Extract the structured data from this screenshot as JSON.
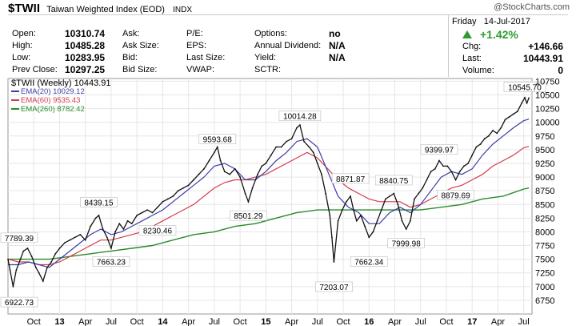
{
  "header": {
    "symbol": "$TWII",
    "name": "Taiwan Weighted Index (EOD)",
    "exchange": "INDX",
    "watermark": "@StockCharts.com",
    "date_day": "Friday",
    "date": "14-Jul-2017",
    "change_pct": "+1.42%",
    "change_color": "#2e9b2e"
  },
  "quotes": {
    "open_label": "Open:",
    "open": "10310.74",
    "high_label": "High:",
    "high": "10485.28",
    "low_label": "Low:",
    "low": "10283.95",
    "prev_label": "Prev Close:",
    "prev": "10297.25",
    "ask_label": "Ask:",
    "ask": "",
    "ask_size_label": "Ask Size:",
    "ask_size": "",
    "bid_label": "Bid:",
    "bid": "",
    "bid_size_label": "Bid Size:",
    "bid_size": "",
    "pe_label": "P/E:",
    "pe": "",
    "eps_label": "EPS:",
    "eps": "",
    "last_size_label": "Last Size:",
    "last_size": "",
    "vwap_label": "VWAP:",
    "vwap": "",
    "options_label": "Options:",
    "options": "no",
    "div_label": "Annual Dividend:",
    "div": "N/A",
    "yield_label": "Yield:",
    "yield": "N/A",
    "sctr_label": "SCTR:",
    "sctr": "",
    "chg_label": "Chg:",
    "chg": "+146.66",
    "last_label": "Last:",
    "last": "10443.91",
    "vol_label": "Volume:",
    "vol": "0"
  },
  "chart_data": {
    "type": "line",
    "price_label": "$TWII (Weekly) 10443.91",
    "legend": [
      {
        "name": "EMA(20) 10029.12",
        "color": "#3b3ba8"
      },
      {
        "name": "EMA(60) 9535.43",
        "color": "#d23c4b"
      },
      {
        "name": "EMA(260) 8782.42",
        "color": "#2a8a2a"
      }
    ],
    "ylim": [
      6500,
      10800
    ],
    "yticks": [
      6750,
      7000,
      7250,
      7500,
      7750,
      8000,
      8250,
      8500,
      8750,
      9000,
      9250,
      9500,
      9750,
      10000,
      10250,
      10500,
      10750
    ],
    "xticks": [
      "Oct",
      "13",
      "Apr",
      "Jul",
      "Oct",
      "14",
      "Apr",
      "Jul",
      "Oct",
      "15",
      "Apr",
      "Jul",
      "Oct",
      "16",
      "Apr",
      "Jul",
      "Oct",
      "17",
      "Apr",
      "Jul"
    ],
    "xtick_pos": [
      2012.75,
      2013.0,
      2013.25,
      2013.5,
      2013.75,
      2014.0,
      2014.25,
      2014.5,
      2014.75,
      2015.0,
      2015.25,
      2015.5,
      2015.75,
      2016.0,
      2016.25,
      2016.5,
      2016.75,
      2017.0,
      2017.25,
      2017.5
    ],
    "xlim": [
      2012.5,
      2017.58
    ],
    "price": [
      [
        2012.5,
        7500
      ],
      [
        2012.52,
        7300
      ],
      [
        2012.55,
        7000
      ],
      [
        2012.58,
        7300
      ],
      [
        2012.62,
        7500
      ],
      [
        2012.65,
        7650
      ],
      [
        2012.69,
        7700
      ],
      [
        2012.73,
        7550
      ],
      [
        2012.77,
        7350
      ],
      [
        2012.8,
        7250
      ],
      [
        2012.84,
        7100
      ],
      [
        2012.88,
        7350
      ],
      [
        2012.92,
        7450
      ],
      [
        2012.96,
        7600
      ],
      [
        2013.0,
        7700
      ],
      [
        2013.05,
        7800
      ],
      [
        2013.1,
        7850
      ],
      [
        2013.15,
        7900
      ],
      [
        2013.2,
        7950
      ],
      [
        2013.25,
        7850
      ],
      [
        2013.3,
        8100
      ],
      [
        2013.35,
        8250
      ],
      [
        2013.38,
        8300
      ],
      [
        2013.42,
        8050
      ],
      [
        2013.46,
        7900
      ],
      [
        2013.5,
        7700
      ],
      [
        2013.54,
        8000
      ],
      [
        2013.58,
        8150
      ],
      [
        2013.62,
        8050
      ],
      [
        2013.66,
        8200
      ],
      [
        2013.7,
        8150
      ],
      [
        2013.75,
        8300
      ],
      [
        2013.8,
        8350
      ],
      [
        2013.85,
        8400
      ],
      [
        2013.9,
        8350
      ],
      [
        2013.95,
        8450
      ],
      [
        2014.0,
        8550
      ],
      [
        2014.05,
        8600
      ],
      [
        2014.1,
        8650
      ],
      [
        2014.15,
        8750
      ],
      [
        2014.2,
        8800
      ],
      [
        2014.25,
        8850
      ],
      [
        2014.3,
        8950
      ],
      [
        2014.35,
        9050
      ],
      [
        2014.4,
        9150
      ],
      [
        2014.45,
        9300
      ],
      [
        2014.5,
        9450
      ],
      [
        2014.53,
        9550
      ],
      [
        2014.56,
        9300
      ],
      [
        2014.6,
        9100
      ],
      [
        2014.65,
        9050
      ],
      [
        2014.7,
        9150
      ],
      [
        2014.75,
        9000
      ],
      [
        2014.8,
        8700
      ],
      [
        2014.83,
        8550
      ],
      [
        2014.87,
        8800
      ],
      [
        2014.92,
        9050
      ],
      [
        2014.96,
        9200
      ],
      [
        2015.0,
        9250
      ],
      [
        2015.05,
        9400
      ],
      [
        2015.1,
        9550
      ],
      [
        2015.15,
        9550
      ],
      [
        2015.2,
        9650
      ],
      [
        2015.25,
        9700
      ],
      [
        2015.3,
        9900
      ],
      [
        2015.33,
        9950
      ],
      [
        2015.37,
        9650
      ],
      [
        2015.42,
        9550
      ],
      [
        2015.46,
        9450
      ],
      [
        2015.5,
        9250
      ],
      [
        2015.54,
        9050
      ],
      [
        2015.58,
        8700
      ],
      [
        2015.62,
        8300
      ],
      [
        2015.64,
        7900
      ],
      [
        2015.66,
        7450
      ],
      [
        2015.7,
        8200
      ],
      [
        2015.74,
        8400
      ],
      [
        2015.78,
        8550
      ],
      [
        2015.82,
        8650
      ],
      [
        2015.85,
        8400
      ],
      [
        2015.88,
        8200
      ],
      [
        2015.92,
        8300
      ],
      [
        2015.96,
        8100
      ],
      [
        2016.0,
        7900
      ],
      [
        2016.04,
        8000
      ],
      [
        2016.08,
        8200
      ],
      [
        2016.12,
        8400
      ],
      [
        2016.16,
        8600
      ],
      [
        2016.2,
        8650
      ],
      [
        2016.24,
        8700
      ],
      [
        2016.28,
        8500
      ],
      [
        2016.32,
        8200
      ],
      [
        2016.36,
        8050
      ],
      [
        2016.4,
        8200
      ],
      [
        2016.44,
        8600
      ],
      [
        2016.48,
        8700
      ],
      [
        2016.52,
        8800
      ],
      [
        2016.56,
        8950
      ],
      [
        2016.6,
        9100
      ],
      [
        2016.64,
        9150
      ],
      [
        2016.68,
        9300
      ],
      [
        2016.72,
        9200
      ],
      [
        2016.76,
        9200
      ],
      [
        2016.8,
        9100
      ],
      [
        2016.84,
        8950
      ],
      [
        2016.88,
        9100
      ],
      [
        2016.92,
        9200
      ],
      [
        2016.96,
        9250
      ],
      [
        2017.0,
        9400
      ],
      [
        2017.04,
        9550
      ],
      [
        2017.08,
        9600
      ],
      [
        2017.12,
        9700
      ],
      [
        2017.16,
        9750
      ],
      [
        2017.2,
        9850
      ],
      [
        2017.24,
        9800
      ],
      [
        2017.28,
        9900
      ],
      [
        2017.32,
        10050
      ],
      [
        2017.36,
        10100
      ],
      [
        2017.4,
        10150
      ],
      [
        2017.44,
        10200
      ],
      [
        2017.48,
        10350
      ],
      [
        2017.51,
        10450
      ],
      [
        2017.53,
        10350
      ],
      [
        2017.55,
        10444
      ]
    ],
    "ema20": [
      [
        2012.5,
        7400
      ],
      [
        2012.6,
        7400
      ],
      [
        2012.7,
        7450
      ],
      [
        2012.8,
        7400
      ],
      [
        2012.9,
        7350
      ],
      [
        2013.0,
        7500
      ],
      [
        2013.1,
        7650
      ],
      [
        2013.2,
        7800
      ],
      [
        2013.3,
        7950
      ],
      [
        2013.4,
        8050
      ],
      [
        2013.5,
        7950
      ],
      [
        2013.6,
        8000
      ],
      [
        2013.7,
        8100
      ],
      [
        2013.8,
        8200
      ],
      [
        2013.9,
        8300
      ],
      [
        2014.0,
        8400
      ],
      [
        2014.1,
        8550
      ],
      [
        2014.2,
        8700
      ],
      [
        2014.3,
        8850
      ],
      [
        2014.4,
        9000
      ],
      [
        2014.5,
        9200
      ],
      [
        2014.6,
        9250
      ],
      [
        2014.7,
        9150
      ],
      [
        2014.8,
        8950
      ],
      [
        2014.9,
        8950
      ],
      [
        2015.0,
        9100
      ],
      [
        2015.1,
        9300
      ],
      [
        2015.2,
        9450
      ],
      [
        2015.3,
        9650
      ],
      [
        2015.4,
        9700
      ],
      [
        2015.5,
        9550
      ],
      [
        2015.6,
        9100
      ],
      [
        2015.7,
        8650
      ],
      [
        2015.8,
        8450
      ],
      [
        2015.9,
        8350
      ],
      [
        2016.0,
        8150
      ],
      [
        2016.1,
        8150
      ],
      [
        2016.2,
        8350
      ],
      [
        2016.3,
        8450
      ],
      [
        2016.4,
        8350
      ],
      [
        2016.5,
        8500
      ],
      [
        2016.6,
        8750
      ],
      [
        2016.7,
        9000
      ],
      [
        2016.8,
        9100
      ],
      [
        2016.9,
        9050
      ],
      [
        2017.0,
        9150
      ],
      [
        2017.1,
        9400
      ],
      [
        2017.2,
        9600
      ],
      [
        2017.3,
        9750
      ],
      [
        2017.4,
        9900
      ],
      [
        2017.5,
        10029
      ],
      [
        2017.55,
        10060
      ]
    ],
    "ema60": [
      [
        2012.5,
        7500
      ],
      [
        2012.6,
        7450
      ],
      [
        2012.7,
        7450
      ],
      [
        2012.8,
        7400
      ],
      [
        2012.9,
        7400
      ],
      [
        2013.0,
        7450
      ],
      [
        2013.1,
        7550
      ],
      [
        2013.2,
        7650
      ],
      [
        2013.3,
        7750
      ],
      [
        2013.4,
        7850
      ],
      [
        2013.5,
        7850
      ],
      [
        2013.6,
        7900
      ],
      [
        2013.7,
        7950
      ],
      [
        2013.8,
        8000
      ],
      [
        2013.9,
        8100
      ],
      [
        2014.0,
        8200
      ],
      [
        2014.1,
        8300
      ],
      [
        2014.2,
        8400
      ],
      [
        2014.3,
        8500
      ],
      [
        2014.4,
        8650
      ],
      [
        2014.5,
        8800
      ],
      [
        2014.6,
        8900
      ],
      [
        2014.7,
        8950
      ],
      [
        2014.8,
        8950
      ],
      [
        2014.9,
        9000
      ],
      [
        2015.0,
        9050
      ],
      [
        2015.1,
        9150
      ],
      [
        2015.2,
        9250
      ],
      [
        2015.3,
        9350
      ],
      [
        2015.4,
        9450
      ],
      [
        2015.5,
        9350
      ],
      [
        2015.6,
        9150
      ],
      [
        2015.7,
        8950
      ],
      [
        2015.8,
        8800
      ],
      [
        2015.9,
        8700
      ],
      [
        2016.0,
        8600
      ],
      [
        2016.1,
        8550
      ],
      [
        2016.2,
        8550
      ],
      [
        2016.3,
        8550
      ],
      [
        2016.4,
        8450
      ],
      [
        2016.5,
        8500
      ],
      [
        2016.6,
        8600
      ],
      [
        2016.7,
        8700
      ],
      [
        2016.8,
        8800
      ],
      [
        2016.9,
        8850
      ],
      [
        2017.0,
        8950
      ],
      [
        2017.1,
        9050
      ],
      [
        2017.2,
        9200
      ],
      [
        2017.3,
        9300
      ],
      [
        2017.4,
        9400
      ],
      [
        2017.5,
        9535
      ],
      [
        2017.55,
        9560
      ]
    ],
    "ema260": [
      [
        2012.5,
        7500
      ],
      [
        2012.7,
        7500
      ],
      [
        2012.9,
        7500
      ],
      [
        2013.1,
        7550
      ],
      [
        2013.3,
        7600
      ],
      [
        2013.5,
        7650
      ],
      [
        2013.7,
        7700
      ],
      [
        2013.9,
        7750
      ],
      [
        2014.1,
        7850
      ],
      [
        2014.3,
        7950
      ],
      [
        2014.5,
        8000
      ],
      [
        2014.7,
        8100
      ],
      [
        2014.9,
        8150
      ],
      [
        2015.1,
        8250
      ],
      [
        2015.3,
        8350
      ],
      [
        2015.5,
        8400
      ],
      [
        2015.7,
        8400
      ],
      [
        2015.9,
        8400
      ],
      [
        2016.1,
        8400
      ],
      [
        2016.3,
        8400
      ],
      [
        2016.5,
        8400
      ],
      [
        2016.7,
        8450
      ],
      [
        2016.9,
        8500
      ],
      [
        2017.1,
        8600
      ],
      [
        2017.3,
        8650
      ],
      [
        2017.5,
        8782
      ],
      [
        2017.55,
        8800
      ]
    ],
    "annotations": [
      {
        "label": "6922.73",
        "x": 2012.52,
        "y": 6922.73,
        "pos": "below"
      },
      {
        "label": "7789.39",
        "x": 2012.58,
        "y": 7789.39,
        "pos": "above"
      },
      {
        "label": "8439.15",
        "x": 2013.38,
        "y": 8439.15,
        "pos": "above"
      },
      {
        "label": "7663.23",
        "x": 2013.5,
        "y": 7663.23,
        "pos": "below"
      },
      {
        "label": "8230.46",
        "x": 2013.95,
        "y": 8230.46,
        "pos": "below"
      },
      {
        "label": "9593.68",
        "x": 2014.53,
        "y": 9593.68,
        "pos": "above"
      },
      {
        "label": "8501.29",
        "x": 2014.83,
        "y": 8501.29,
        "pos": "below"
      },
      {
        "label": "10014.28",
        "x": 2015.33,
        "y": 10014.28,
        "pos": "above"
      },
      {
        "label": "7203.07",
        "x": 2015.66,
        "y": 7203.07,
        "pos": "below"
      },
      {
        "label": "8871.87",
        "x": 2015.82,
        "y": 8871.87,
        "pos": "above"
      },
      {
        "label": "7662.34",
        "x": 2016.0,
        "y": 7662.34,
        "pos": "below"
      },
      {
        "label": "8840.75",
        "x": 2016.24,
        "y": 8840.75,
        "pos": "above"
      },
      {
        "label": "7999.98",
        "x": 2016.36,
        "y": 7999.98,
        "pos": "below"
      },
      {
        "label": "9399.97",
        "x": 2016.68,
        "y": 9399.97,
        "pos": "above"
      },
      {
        "label": "8879.69",
        "x": 2016.84,
        "y": 8879.69,
        "pos": "below"
      },
      {
        "label": "10545.70",
        "x": 2017.51,
        "y": 10545.7,
        "pos": "above"
      }
    ]
  }
}
